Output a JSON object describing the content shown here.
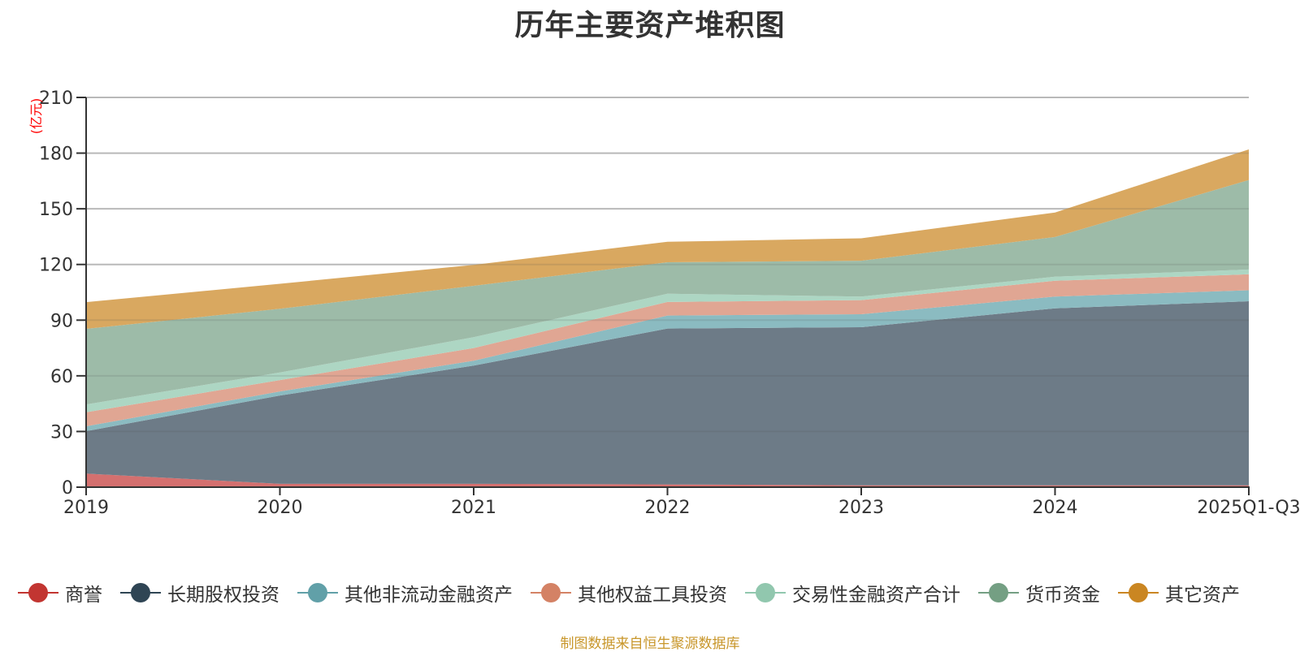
{
  "chart_data": {
    "type": "area",
    "stacked": true,
    "title": "历年主要资产堆积图",
    "xlabel": "",
    "ylabel": "(亿元)",
    "ylim": [
      0,
      210
    ],
    "yticks": [
      0,
      30,
      60,
      90,
      120,
      150,
      180,
      210
    ],
    "grid": true,
    "legend_position": "bottom",
    "categories": [
      "2019",
      "2020",
      "2021",
      "2022",
      "2023",
      "2024",
      "2025Q1-Q3"
    ],
    "series": [
      {
        "name": "商誉",
        "color": "#c23531",
        "fill": "#d4706f",
        "values": [
          7.3,
          1.8,
          1.8,
          1.5,
          1.0,
          1.0,
          1.0
        ]
      },
      {
        "name": "长期股权投资",
        "color": "#2f4554",
        "fill": "#6d7b87",
        "values": [
          22.9,
          47.6,
          63.7,
          84.0,
          85.2,
          95.4,
          99.2
        ]
      },
      {
        "name": "其他非流动金融资产",
        "color": "#61a0a8",
        "fill": "#8bbbc1",
        "values": [
          2.6,
          2.2,
          2.6,
          7.0,
          7.0,
          6.3,
          5.9
        ]
      },
      {
        "name": "其他权益工具投资",
        "color": "#d48265",
        "fill": "#e0a693",
        "values": [
          7.6,
          6.1,
          6.9,
          7.3,
          7.6,
          8.5,
          8.6
        ]
      },
      {
        "name": "交易性金融资产合计",
        "color": "#91c7ae",
        "fill": "#add6c3",
        "values": [
          4.2,
          4.1,
          5.8,
          4.4,
          1.9,
          2.2,
          2.6
        ]
      },
      {
        "name": "货币资金",
        "color": "#749f83",
        "fill": "#9dbba8",
        "values": [
          40.7,
          34.3,
          27.7,
          17.0,
          19.3,
          21.4,
          48.2
        ]
      },
      {
        "name": "其它资产",
        "color": "#ca8622",
        "fill": "#d9a860",
        "values": [
          14.4,
          13.5,
          11.3,
          11.0,
          12.1,
          13.2,
          16.5
        ]
      }
    ],
    "source_note": "制图数据来自恒生聚源数据库"
  }
}
